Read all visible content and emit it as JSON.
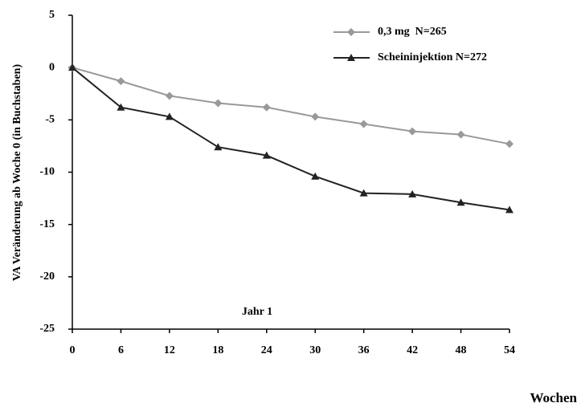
{
  "chart_data": {
    "type": "line",
    "y_label": "VA Veränderung ab Woche 0 (in Buchstaben)",
    "x_label": "Wochen",
    "annotation": "Jahr 1",
    "x": [
      0,
      6,
      12,
      18,
      24,
      30,
      36,
      42,
      48,
      54
    ],
    "series": [
      {
        "name": "0,3 mg  N=265",
        "color": "#999999",
        "marker": "diamond",
        "values": [
          0,
          -1.3,
          -2.7,
          -3.4,
          -3.8,
          -4.7,
          -5.4,
          -6.1,
          -6.4,
          -7.3
        ]
      },
      {
        "name": "Scheininjektion N=272",
        "color": "#222222",
        "marker": "triangle",
        "values": [
          0,
          -3.8,
          -4.7,
          -7.6,
          -8.4,
          -10.4,
          -12.0,
          -12.1,
          -12.9,
          -13.6
        ]
      }
    ],
    "xlim": [
      0,
      54
    ],
    "xticks": [
      0,
      6,
      12,
      18,
      24,
      30,
      36,
      42,
      48,
      54
    ],
    "ylim": [
      -25,
      5
    ],
    "yticks": [
      5,
      0,
      -5,
      -10,
      -15,
      -20,
      -25
    ],
    "grid": false,
    "legend": "top-right"
  }
}
